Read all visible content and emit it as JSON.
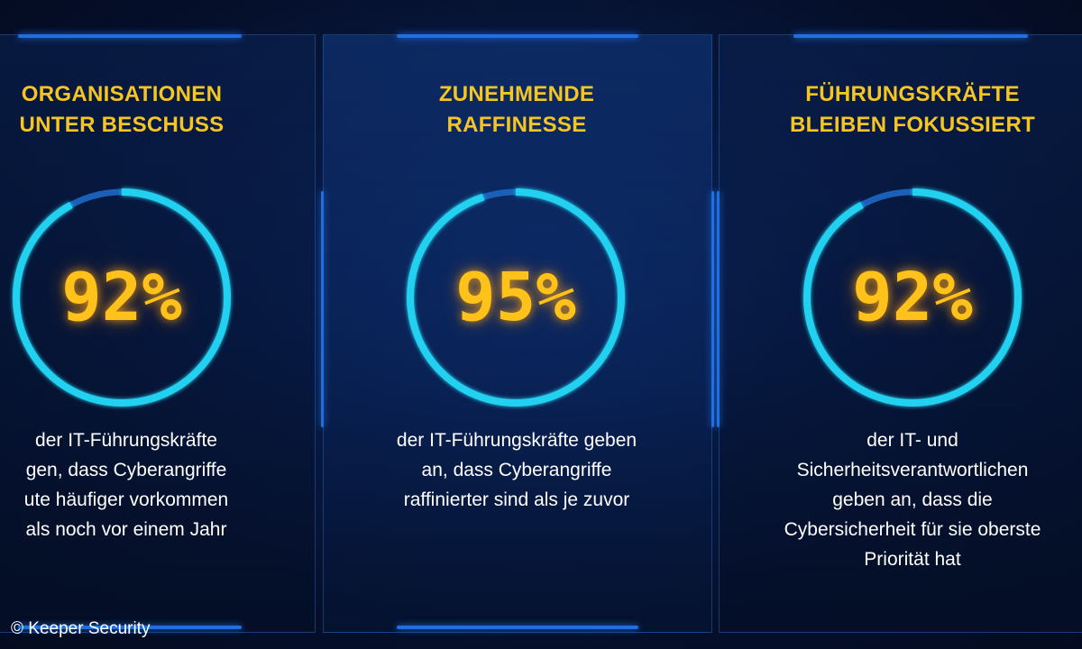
{
  "cards": [
    {
      "title": "ORGANISATIONEN\nUNTER BESCHUSS",
      "percent": "92%",
      "percent_value": 92,
      "description": "der IT-Führungskräfte\ngen, dass Cyberangriffe\nute häufiger vorkommen\nals noch vor einem Jahr"
    },
    {
      "title": "ZUNEHMENDE\nRAFFINESSE",
      "percent": "95%",
      "percent_value": 95,
      "description": "der IT-Führungskräfte geben\nan, dass Cyberangriffe\nraffinierter sind als je zuvor"
    },
    {
      "title": "FÜHRUNGSKRÄFTE\nBLEIBEN FOKUSSIERT",
      "percent": "92%",
      "percent_value": 92,
      "description": "der IT- und\nSicherheitsverantwortlichen\ngeben an, dass die\nCybersicherheit für sie oberste\nPriorität hat"
    }
  ],
  "copyright": "© Keeper Security",
  "colors": {
    "title": "#f5c522",
    "percent": "#ffc21a",
    "ring": "#22d0f0",
    "ring_gap": "#1a5fb8",
    "accent_bar": "#1f6fe0"
  }
}
